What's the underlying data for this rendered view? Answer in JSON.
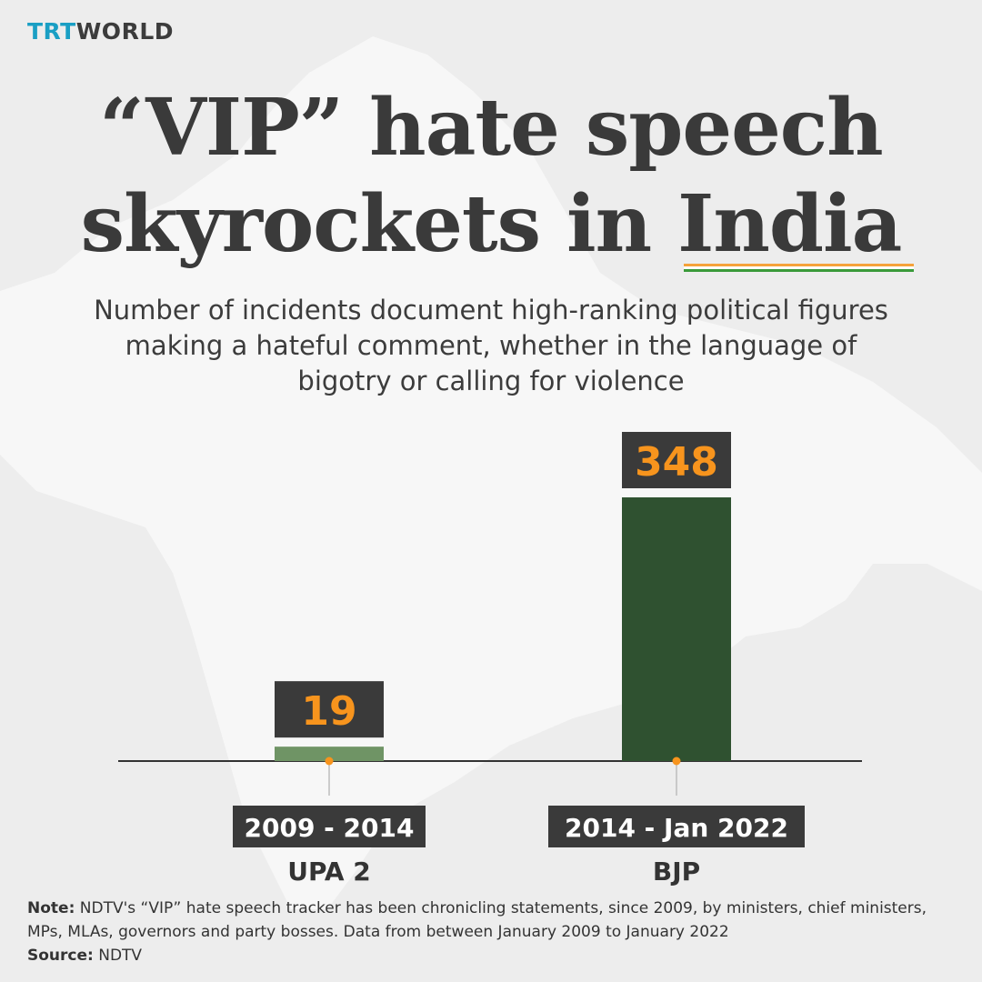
{
  "logo": {
    "part1": "TRT",
    "part2": "WORLD"
  },
  "title": {
    "line1": "“VIP” hate speech",
    "line2_prefix": "skyrockets in ",
    "line2_highlight": "India"
  },
  "subtitle": "Number of incidents document high-ranking political figures making a hateful comment, whether in the language of bigotry or calling for violence",
  "colors": {
    "upa_bar": "#6f9465",
    "bjp_bar": "#2f5130",
    "label_box": "#3a3a3a",
    "value_text": "#f7941d",
    "flag_saffron": "#f5a23a",
    "flag_white": "#ffffff",
    "flag_green": "#3a9a3a",
    "map_fill": "#f7f7f7"
  },
  "chart_data": {
    "type": "bar",
    "categories": [
      "2009 - 2014",
      "2014 - Jan 2022"
    ],
    "groups": [
      "UPA 2",
      "BJP"
    ],
    "values": [
      19,
      348
    ],
    "ylim": [
      0,
      348
    ]
  },
  "footer": {
    "note_label": "Note:",
    "note_text": " NDTV's “VIP” hate speech tracker has been chronicling statements, since 2009, by ministers, chief ministers, MPs, MLAs, governors and party bosses. Data from between January 2009 to January 2022",
    "source_label": "Source:",
    "source_text": " NDTV"
  }
}
